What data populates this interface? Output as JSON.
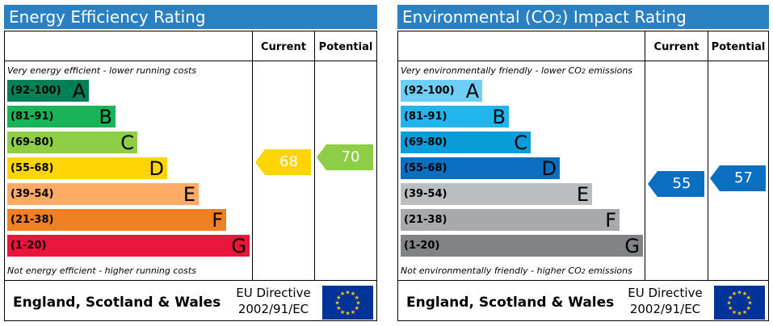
{
  "column_headers": {
    "current": "Current",
    "potential": "Potential"
  },
  "footer": {
    "region": "England, Scotland & Wales",
    "directive_line1": "EU Directive",
    "directive_line2": "2002/91/EC"
  },
  "energy": {
    "title": "Energy Efficiency Rating",
    "top_note": "Very energy efficient - lower running costs",
    "bottom_note": "Not energy efficient - higher running costs",
    "bands": [
      {
        "range": "(92-100)",
        "letter": "A",
        "color": "#008054"
      },
      {
        "range": "(81-91)",
        "letter": "B",
        "color": "#19b459"
      },
      {
        "range": "(69-80)",
        "letter": "C",
        "color": "#8dce46"
      },
      {
        "range": "(55-68)",
        "letter": "D",
        "color": "#ffd500"
      },
      {
        "range": "(39-54)",
        "letter": "E",
        "color": "#fcaa65"
      },
      {
        "range": "(21-38)",
        "letter": "F",
        "color": "#ef8023"
      },
      {
        "range": "(1-20)",
        "letter": "G",
        "color": "#e9153b"
      }
    ],
    "current": {
      "value": "68",
      "color": "#ffd500"
    },
    "potential": {
      "value": "70",
      "color": "#8dce46"
    }
  },
  "environment": {
    "title_prefix": "Environmental (CO",
    "title_sub": "2",
    "title_suffix": ") Impact Rating",
    "top_note_prefix": "Very environmentally friendly - lower CO",
    "top_note_sub": "2",
    "top_note_suffix": " emissions",
    "bottom_note_prefix": "Not environmentally friendly - higher CO",
    "bottom_note_sub": "2",
    "bottom_note_suffix": " emissions",
    "bands": [
      {
        "range": "(92-100)",
        "letter": "A",
        "color": "#6ecff6"
      },
      {
        "range": "(81-91)",
        "letter": "B",
        "color": "#22b5eb"
      },
      {
        "range": "(69-80)",
        "letter": "C",
        "color": "#0a9bd9"
      },
      {
        "range": "(55-68)",
        "letter": "D",
        "color": "#0a6fc0"
      },
      {
        "range": "(39-54)",
        "letter": "E",
        "color": "#bbbdbf"
      },
      {
        "range": "(21-38)",
        "letter": "F",
        "color": "#a7a9ac"
      },
      {
        "range": "(1-20)",
        "letter": "G",
        "color": "#808285"
      }
    ],
    "current": {
      "value": "55",
      "color": "#0a6fc0"
    },
    "potential": {
      "value": "57",
      "color": "#0a6fc0"
    }
  }
}
